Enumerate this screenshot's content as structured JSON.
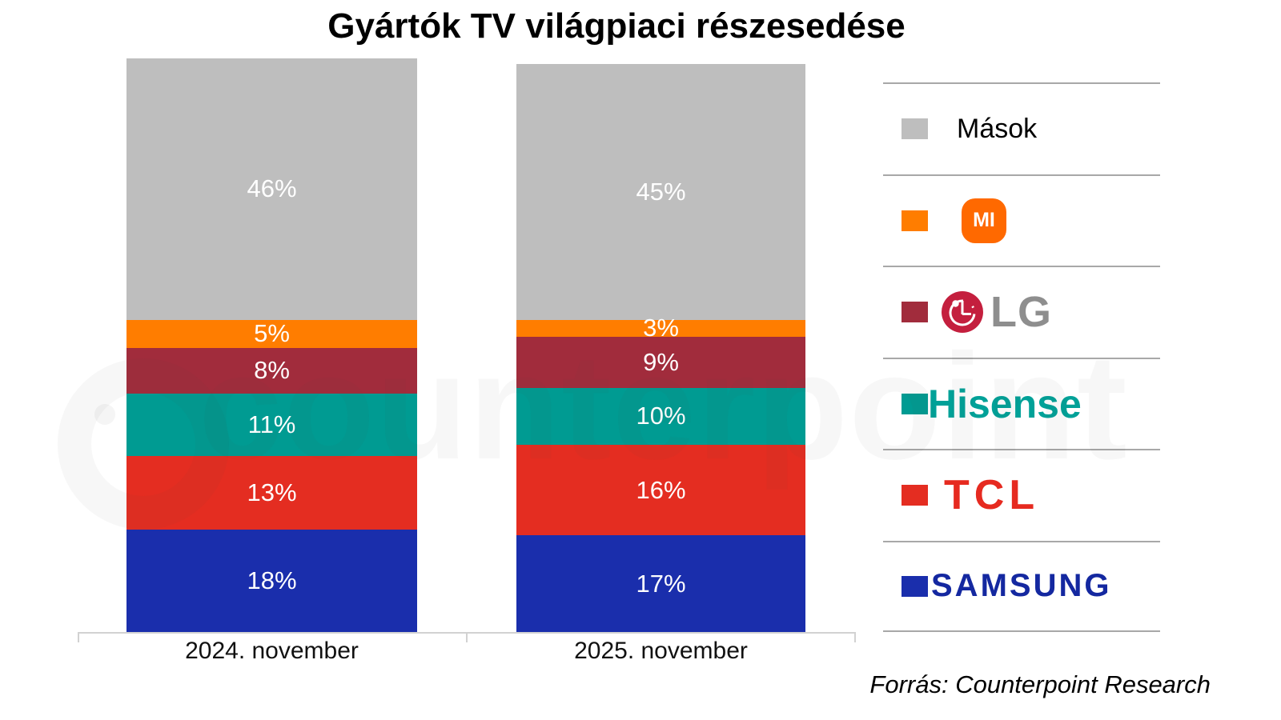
{
  "title": "Gyártók TV világpiaci részesedése",
  "source": "Forrás: Counterpoint Research",
  "watermark_text": "counterpoint",
  "chart_data": {
    "type": "bar",
    "stacked": true,
    "unit": "%",
    "title": "Gyártók TV világpiaci részesedése",
    "categories": [
      "2024. november",
      "2025. november"
    ],
    "series": [
      {
        "name": "Samsung",
        "color": "#1A2EAC",
        "values": [
          18,
          17
        ]
      },
      {
        "name": "TCL",
        "color": "#E42D21",
        "values": [
          13,
          16
        ]
      },
      {
        "name": "Hisense",
        "color": "#009B92",
        "values": [
          11,
          10
        ]
      },
      {
        "name": "LG",
        "color": "#A12C3C",
        "values": [
          8,
          9
        ]
      },
      {
        "name": "Mi",
        "color": "#FF7D00",
        "values": [
          5,
          3
        ]
      },
      {
        "name": "Mások",
        "color": "#BEBEBE",
        "values": [
          46,
          45
        ]
      }
    ],
    "stack_order_bottom_to_top": [
      "Samsung",
      "TCL",
      "Hisense",
      "LG",
      "Mi",
      "Mások"
    ],
    "value_labels": true,
    "value_label_color": "#ffffff",
    "legend_position": "right",
    "gridlines": false
  },
  "legend": {
    "items": [
      {
        "brand": "masok",
        "type": "plain",
        "label": "Mások",
        "swatch": "#BEBEBE"
      },
      {
        "brand": "mi",
        "type": "xiaomi",
        "label": "MI",
        "swatch": "#FF7D00",
        "logo_bg": "#FF6900"
      },
      {
        "brand": "lg",
        "type": "lg",
        "label": "LG",
        "swatch": "#A12C3C",
        "circle_color": "#C41F3E",
        "text_color": "#8e8e8e"
      },
      {
        "brand": "hisense",
        "type": "wordmark",
        "label": "Hisense",
        "swatch": "#009B92",
        "logo_color": "#00A198"
      },
      {
        "brand": "tcl",
        "type": "wordmark",
        "label": "TCL",
        "swatch": "#E42D21",
        "logo_color": "#E62A20"
      },
      {
        "brand": "samsung",
        "type": "wordmark",
        "label": "SAMSUNG",
        "swatch": "#1A2EAC",
        "logo_color": "#1428A0"
      }
    ]
  }
}
